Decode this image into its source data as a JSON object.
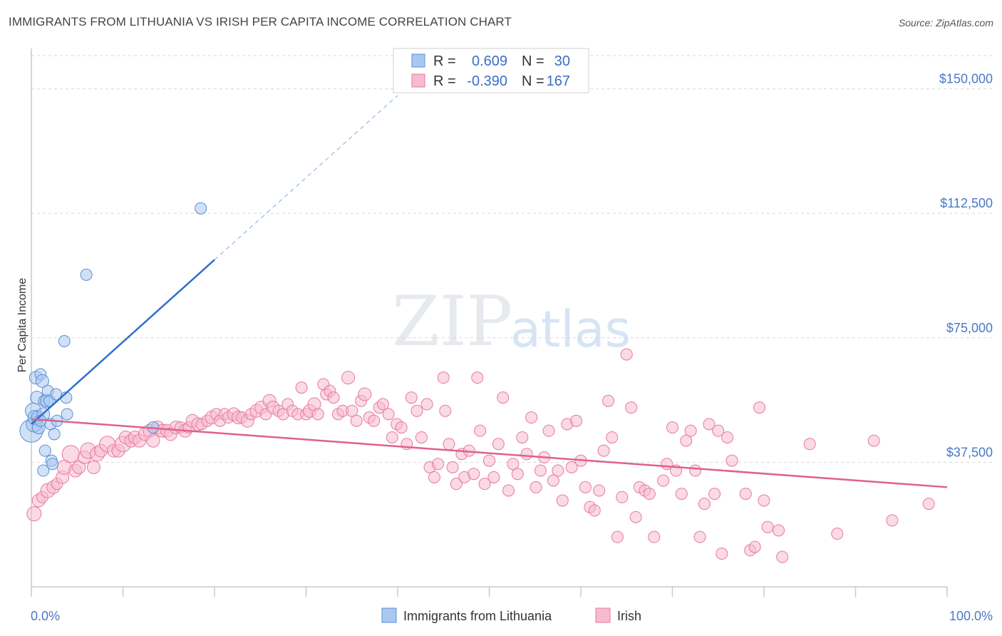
{
  "title": "IMMIGRANTS FROM LITHUANIA VS IRISH PER CAPITA INCOME CORRELATION CHART",
  "source": "Source: ZipAtlas.com",
  "watermark": {
    "zip": "ZIP",
    "atlas": "atlas"
  },
  "colors": {
    "blue_fill": "#aac8ee",
    "blue_stroke": "#5b8fd8",
    "blue_line": "#2f6fd0",
    "pink_fill": "#f5bcd0",
    "pink_stroke": "#e8799e",
    "pink_line": "#e0608c",
    "grid": "#d8d8d8",
    "axis_text": "#4a78c4"
  },
  "legend": {
    "rows": [
      {
        "r_label": "R =",
        "r_value": "0.609",
        "n_label": "N =",
        "n_value": "30"
      },
      {
        "r_label": "R =",
        "r_value": "-0.390",
        "n_label": "N =",
        "n_value": "167"
      }
    ]
  },
  "chart_data": {
    "type": "scatter",
    "title": "IMMIGRANTS FROM LITHUANIA VS IRISH PER CAPITA INCOME CORRELATION CHART",
    "xlabel": "",
    "ylabel": "Per Capita Income",
    "xlim": [
      0,
      100
    ],
    "ylim": [
      0,
      160000
    ],
    "x_tick_labels": [
      "0.0%",
      "100.0%"
    ],
    "y_ticks": [
      {
        "value": 37500,
        "label": "$37,500"
      },
      {
        "value": 75000,
        "label": "$75,000"
      },
      {
        "value": 112500,
        "label": "$112,500"
      },
      {
        "value": 150000,
        "label": "$150,000"
      }
    ],
    "grid": true,
    "legend_position": "top-center",
    "series": [
      {
        "name": "Immigrants from Lithuania",
        "r": 0.609,
        "n": 30,
        "trend": {
          "x0": 0,
          "y0": 49000,
          "x1": 20,
          "y1": 98500,
          "dash_to_x": 40,
          "dash_to_y": 148000
        },
        "points": [
          [
            0.0,
            47000,
            16
          ],
          [
            0.2,
            53000,
            11
          ],
          [
            0.3,
            49000,
            11
          ],
          [
            0.4,
            51000,
            10
          ],
          [
            0.5,
            63000,
            9
          ],
          [
            0.6,
            57000,
            9
          ],
          [
            0.7,
            51000,
            9
          ],
          [
            0.8,
            48000,
            9
          ],
          [
            1.0,
            64000,
            8
          ],
          [
            1.2,
            62000,
            9
          ],
          [
            1.3,
            52000,
            9
          ],
          [
            1.4,
            56000,
            8
          ],
          [
            1.5,
            41000,
            8
          ],
          [
            1.7,
            56000,
            9
          ],
          [
            1.8,
            59000,
            8
          ],
          [
            2.0,
            56000,
            8
          ],
          [
            2.1,
            49000,
            8
          ],
          [
            2.2,
            38000,
            8
          ],
          [
            2.3,
            37000,
            8
          ],
          [
            2.5,
            46000,
            8
          ],
          [
            2.7,
            58000,
            8
          ],
          [
            1.3,
            35000,
            8
          ],
          [
            2.8,
            50000,
            8
          ],
          [
            3.6,
            74000,
            8
          ],
          [
            3.8,
            57000,
            8
          ],
          [
            3.9,
            52000,
            8
          ],
          [
            6.0,
            94000,
            8
          ],
          [
            13.3,
            48000,
            8
          ],
          [
            18.5,
            114000,
            8
          ],
          [
            1.0,
            50000,
            8
          ]
        ]
      },
      {
        "name": "Irish",
        "r": -0.39,
        "n": 167,
        "trend": {
          "x0": 0,
          "y0": 50500,
          "x1": 100,
          "y1": 30000
        },
        "points": [
          [
            0.3,
            22000,
            10
          ],
          [
            0.8,
            26000,
            9
          ],
          [
            1.2,
            27000,
            8
          ],
          [
            1.8,
            29000,
            10
          ],
          [
            2.4,
            30000,
            9
          ],
          [
            2.8,
            31000,
            8
          ],
          [
            3.4,
            33000,
            9
          ],
          [
            3.6,
            36000,
            10
          ],
          [
            4.3,
            40000,
            12
          ],
          [
            4.8,
            35000,
            9
          ],
          [
            5.2,
            36000,
            9
          ],
          [
            5.8,
            39000,
            9
          ],
          [
            6.2,
            41000,
            11
          ],
          [
            6.8,
            36000,
            9
          ],
          [
            7.2,
            40000,
            10
          ],
          [
            7.6,
            41000,
            9
          ],
          [
            8.3,
            43000,
            11
          ],
          [
            9.0,
            41000,
            9
          ],
          [
            9.5,
            41000,
            9
          ],
          [
            10.0,
            43000,
            11
          ],
          [
            10.3,
            45000,
            9
          ],
          [
            10.9,
            44000,
            9
          ],
          [
            11.3,
            45000,
            9
          ],
          [
            11.8,
            44000,
            9
          ],
          [
            12.4,
            46000,
            9
          ],
          [
            12.9,
            47000,
            9
          ],
          [
            13.3,
            44000,
            9
          ],
          [
            13.8,
            48000,
            9
          ],
          [
            14.3,
            47000,
            9
          ],
          [
            14.8,
            47000,
            9
          ],
          [
            15.2,
            46000,
            9
          ],
          [
            15.8,
            48000,
            9
          ],
          [
            16.3,
            48000,
            8
          ],
          [
            16.8,
            47000,
            9
          ],
          [
            17.2,
            48000,
            8
          ],
          [
            17.6,
            50000,
            9
          ],
          [
            18.2,
            49000,
            9
          ],
          [
            18.6,
            49000,
            8
          ],
          [
            19.2,
            50000,
            8
          ],
          [
            19.7,
            51000,
            9
          ],
          [
            20.2,
            52000,
            8
          ],
          [
            20.6,
            50000,
            8
          ],
          [
            21.1,
            52000,
            8
          ],
          [
            21.5,
            51000,
            8
          ],
          [
            22.1,
            52000,
            9
          ],
          [
            22.6,
            51000,
            9
          ],
          [
            23.0,
            51000,
            8
          ],
          [
            23.6,
            50000,
            9
          ],
          [
            24.0,
            52000,
            8
          ],
          [
            24.6,
            53000,
            9
          ],
          [
            25.1,
            54000,
            9
          ],
          [
            25.6,
            52000,
            8
          ],
          [
            26.0,
            56000,
            9
          ],
          [
            26.4,
            54000,
            9
          ],
          [
            27.0,
            53000,
            8
          ],
          [
            27.5,
            52000,
            8
          ],
          [
            28.0,
            55000,
            8
          ],
          [
            28.5,
            53000,
            8
          ],
          [
            29.1,
            52000,
            8
          ],
          [
            29.5,
            60000,
            8
          ],
          [
            30.0,
            52000,
            8
          ],
          [
            30.4,
            53000,
            9
          ],
          [
            30.9,
            55000,
            9
          ],
          [
            31.3,
            52000,
            8
          ],
          [
            31.9,
            61000,
            8
          ],
          [
            32.2,
            58000,
            8
          ],
          [
            32.6,
            59000,
            8
          ],
          [
            33.0,
            57000,
            8
          ],
          [
            33.5,
            52000,
            8
          ],
          [
            34.0,
            53000,
            8
          ],
          [
            34.6,
            63000,
            9
          ],
          [
            35.0,
            53000,
            8
          ],
          [
            35.5,
            50000,
            8
          ],
          [
            36.0,
            56000,
            8
          ],
          [
            36.4,
            58000,
            9
          ],
          [
            36.9,
            51000,
            8
          ],
          [
            37.4,
            50000,
            8
          ],
          [
            38.0,
            54000,
            8
          ],
          [
            38.4,
            55000,
            8
          ],
          [
            39.0,
            52000,
            8
          ],
          [
            39.4,
            45000,
            8
          ],
          [
            39.9,
            49000,
            8
          ],
          [
            40.4,
            48000,
            8
          ],
          [
            41.0,
            43000,
            8
          ],
          [
            41.5,
            57000,
            8
          ],
          [
            42.1,
            53000,
            8
          ],
          [
            42.6,
            45000,
            8
          ],
          [
            43.2,
            55000,
            8
          ],
          [
            43.5,
            36000,
            8
          ],
          [
            44.0,
            33000,
            8
          ],
          [
            44.4,
            37000,
            8
          ],
          [
            45.0,
            63000,
            8
          ],
          [
            45.2,
            53000,
            8
          ],
          [
            45.6,
            43000,
            8
          ],
          [
            46.0,
            36000,
            8
          ],
          [
            46.4,
            31000,
            8
          ],
          [
            47.0,
            40000,
            8
          ],
          [
            47.3,
            33000,
            8
          ],
          [
            47.8,
            41000,
            8
          ],
          [
            48.3,
            34000,
            8
          ],
          [
            48.7,
            63000,
            8
          ],
          [
            49.0,
            47000,
            8
          ],
          [
            49.5,
            31000,
            8
          ],
          [
            50.0,
            38000,
            8
          ],
          [
            50.5,
            33000,
            8
          ],
          [
            51.0,
            43000,
            8
          ],
          [
            51.5,
            57000,
            8
          ],
          [
            52.1,
            29000,
            8
          ],
          [
            52.6,
            37000,
            8
          ],
          [
            53.1,
            34000,
            8
          ],
          [
            53.6,
            45000,
            8
          ],
          [
            54.1,
            40000,
            8
          ],
          [
            54.6,
            51000,
            8
          ],
          [
            55.1,
            30000,
            8
          ],
          [
            55.6,
            35000,
            8
          ],
          [
            56.0,
            39000,
            8
          ],
          [
            56.5,
            47000,
            8
          ],
          [
            57.0,
            32000,
            8
          ],
          [
            57.5,
            35000,
            8
          ],
          [
            58.0,
            26000,
            8
          ],
          [
            58.5,
            49000,
            8
          ],
          [
            59.0,
            36000,
            8
          ],
          [
            59.5,
            50000,
            8
          ],
          [
            60.0,
            38000,
            8
          ],
          [
            60.5,
            30000,
            8
          ],
          [
            61.0,
            24000,
            8
          ],
          [
            61.5,
            23000,
            8
          ],
          [
            62.0,
            29000,
            8
          ],
          [
            62.5,
            41000,
            8
          ],
          [
            63.0,
            56000,
            8
          ],
          [
            63.4,
            45000,
            8
          ],
          [
            64.0,
            15000,
            8
          ],
          [
            64.5,
            27000,
            8
          ],
          [
            65.0,
            70000,
            8
          ],
          [
            65.5,
            54000,
            8
          ],
          [
            66.0,
            21000,
            8
          ],
          [
            66.4,
            30000,
            8
          ],
          [
            67.0,
            29000,
            8
          ],
          [
            67.5,
            28000,
            8
          ],
          [
            68.0,
            15000,
            8
          ],
          [
            69.0,
            32000,
            8
          ],
          [
            69.4,
            37000,
            8
          ],
          [
            70.0,
            48000,
            8
          ],
          [
            70.4,
            35000,
            8
          ],
          [
            71.0,
            28000,
            8
          ],
          [
            71.5,
            44000,
            8
          ],
          [
            72.0,
            47000,
            8
          ],
          [
            72.5,
            35000,
            8
          ],
          [
            73.0,
            15000,
            8
          ],
          [
            73.5,
            25000,
            8
          ],
          [
            74.0,
            49000,
            8
          ],
          [
            74.6,
            28000,
            8
          ],
          [
            75.0,
            47000,
            8
          ],
          [
            75.4,
            10000,
            8
          ],
          [
            76.0,
            45000,
            8
          ],
          [
            76.5,
            38000,
            8
          ],
          [
            78.0,
            28000,
            8
          ],
          [
            78.5,
            11000,
            8
          ],
          [
            79.0,
            12000,
            8
          ],
          [
            79.5,
            54000,
            8
          ],
          [
            80.0,
            26000,
            8
          ],
          [
            80.4,
            18000,
            8
          ],
          [
            81.6,
            17000,
            8
          ],
          [
            82.0,
            9000,
            8
          ],
          [
            85.0,
            43000,
            8
          ],
          [
            88.0,
            16000,
            8
          ],
          [
            92.0,
            44000,
            8
          ],
          [
            94.0,
            20000,
            8
          ],
          [
            98.0,
            25000,
            8
          ]
        ]
      }
    ]
  },
  "bottom_legend": [
    "Immigrants from Lithuania",
    "Irish"
  ]
}
